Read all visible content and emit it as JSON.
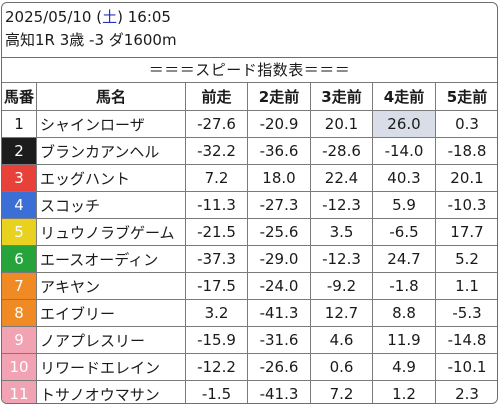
{
  "header": {
    "date": "2025/05/10",
    "day_of_week": "土",
    "time": "16:05",
    "race_info": "高知1R 3歳 -3 ダ1600m"
  },
  "title": "＝＝＝スピード指数表＝＝＝",
  "columns": [
    "馬番",
    "馬名",
    "前走",
    "2走前",
    "3走前",
    "4走前",
    "5走前"
  ],
  "colors": {
    "highlight": "#d9dde8",
    "day_of_week": "#2a35b8"
  },
  "rows": [
    {
      "no": "1",
      "name": "シャインローザ",
      "vals": [
        "-27.6",
        "-20.9",
        "20.1",
        "26.0",
        "0.3"
      ],
      "bg": "#ffffff",
      "fg": "#1a1a1a",
      "hl": 3
    },
    {
      "no": "2",
      "name": "ブランカアンヘル",
      "vals": [
        "-32.2",
        "-36.6",
        "-28.6",
        "-14.0",
        "-18.8"
      ],
      "bg": "#1c1c1c",
      "fg": "#ffffff",
      "hl": -1
    },
    {
      "no": "3",
      "name": "エッグハント",
      "vals": [
        "7.2",
        "18.0",
        "22.4",
        "40.3",
        "20.1"
      ],
      "bg": "#e8413a",
      "fg": "#ffffff",
      "hl": -1
    },
    {
      "no": "4",
      "name": "スコッチ",
      "vals": [
        "-11.3",
        "-27.3",
        "-12.3",
        "5.9",
        "-10.3"
      ],
      "bg": "#3c6fd6",
      "fg": "#ffffff",
      "hl": -1
    },
    {
      "no": "5",
      "name": "リュウノラブゲーム",
      "vals": [
        "-21.5",
        "-25.6",
        "3.5",
        "-6.5",
        "17.7"
      ],
      "bg": "#e8d21f",
      "fg": "#ffffff",
      "hl": -1
    },
    {
      "no": "6",
      "name": "エースオーディン",
      "vals": [
        "-37.3",
        "-29.0",
        "-12.3",
        "24.7",
        "5.2"
      ],
      "bg": "#27a33c",
      "fg": "#ffffff",
      "hl": -1
    },
    {
      "no": "7",
      "name": "アキヤン",
      "vals": [
        "-17.5",
        "-24.0",
        "-9.2",
        "-1.8",
        "1.1"
      ],
      "bg": "#ef8a25",
      "fg": "#ffffff",
      "hl": -1
    },
    {
      "no": "8",
      "name": "エイブリー",
      "vals": [
        "3.2",
        "-41.3",
        "12.7",
        "8.8",
        "-5.3"
      ],
      "bg": "#ef8a25",
      "fg": "#ffffff",
      "hl": -1
    },
    {
      "no": "9",
      "name": "ノアプレスリー",
      "vals": [
        "-15.9",
        "-31.6",
        "4.6",
        "11.9",
        "-14.8"
      ],
      "bg": "#f2a3b3",
      "fg": "#ffffff",
      "hl": -1
    },
    {
      "no": "10",
      "name": "リワードエレイン",
      "vals": [
        "-12.2",
        "-26.6",
        "0.6",
        "4.9",
        "-10.1"
      ],
      "bg": "#f2a3b3",
      "fg": "#ffffff",
      "hl": -1
    },
    {
      "no": "11",
      "name": "トサノオウマサン",
      "vals": [
        "-1.5",
        "-41.3",
        "7.2",
        "1.2",
        "2.3"
      ],
      "bg": "#f2a3b3",
      "fg": "#ffffff",
      "hl": -1
    }
  ]
}
